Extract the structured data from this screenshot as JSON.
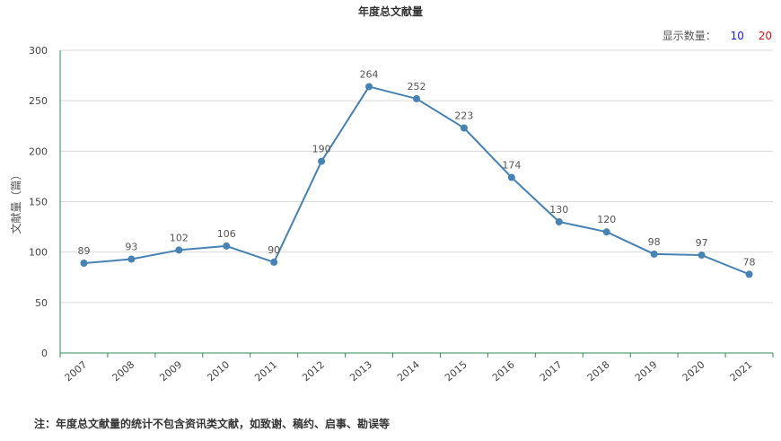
{
  "chart_data": {
    "type": "line",
    "title": "年度总文献量",
    "ylabel": "文献量（篇）",
    "xlabel": "",
    "categories": [
      "2007",
      "2008",
      "2009",
      "2010",
      "2011",
      "2012",
      "2013",
      "2014",
      "2015",
      "2016",
      "2017",
      "2018",
      "2019",
      "2020",
      "2021"
    ],
    "values": [
      89,
      93,
      102,
      106,
      90,
      190,
      264,
      252,
      223,
      174,
      130,
      120,
      98,
      97,
      78
    ],
    "ylim": [
      0,
      300
    ],
    "yticks": [
      0,
      50,
      100,
      150,
      200,
      250,
      300
    ],
    "grid": "horizontal",
    "line_color": "#4682b4",
    "axis_color": "#2e8b57"
  },
  "display_count": {
    "label": "显示数量：",
    "options": [
      "10",
      "20"
    ],
    "colors": [
      "#1a1ae6",
      "#e01010"
    ]
  },
  "footnote": "注：年度总文献量的统计不包含资讯类文献，如致谢、稿约、启事、勘误等"
}
